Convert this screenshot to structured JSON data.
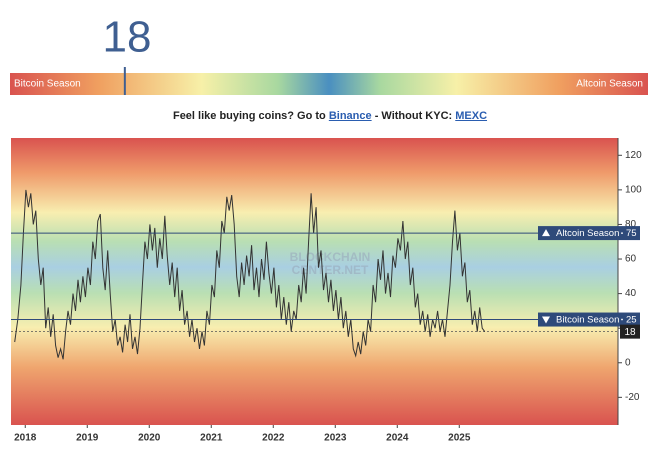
{
  "header": {
    "current_value": 18,
    "scale": [
      0,
      100
    ],
    "min_label": "Bitcoin Season",
    "max_label": "Altcoin Season",
    "promo": {
      "lead": "Feel like buying coins? Go to",
      "link1": "Binance",
      "middle": "- Without KYC:",
      "link2": "MEXC"
    }
  },
  "chart_data": {
    "type": "line",
    "color": "#333333",
    "watermark": [
      "BLOCKCHAIN",
      "CENTER.NET"
    ],
    "x": [
      2017.83,
      2017.88,
      2017.93,
      2017.97,
      2018.01,
      2018.05,
      2018.09,
      2018.13,
      2018.17,
      2018.21,
      2018.25,
      2018.29,
      2018.33,
      2018.37,
      2018.41,
      2018.45,
      2018.49,
      2018.53,
      2018.57,
      2018.61,
      2018.65,
      2018.69,
      2018.73,
      2018.77,
      2018.81,
      2018.85,
      2018.89,
      2018.93,
      2018.97,
      2019.01,
      2019.05,
      2019.09,
      2019.13,
      2019.17,
      2019.21,
      2019.25,
      2019.29,
      2019.33,
      2019.37,
      2019.41,
      2019.45,
      2019.49,
      2019.53,
      2019.57,
      2019.61,
      2019.65,
      2019.69,
      2019.73,
      2019.77,
      2019.81,
      2019.85,
      2019.89,
      2019.93,
      2019.97,
      2020.01,
      2020.05,
      2020.09,
      2020.13,
      2020.17,
      2020.21,
      2020.25,
      2020.29,
      2020.33,
      2020.37,
      2020.41,
      2020.45,
      2020.49,
      2020.53,
      2020.57,
      2020.61,
      2020.65,
      2020.69,
      2020.73,
      2020.77,
      2020.81,
      2020.85,
      2020.89,
      2020.93,
      2020.97,
      2021.01,
      2021.05,
      2021.09,
      2021.13,
      2021.17,
      2021.21,
      2021.25,
      2021.29,
      2021.33,
      2021.37,
      2021.41,
      2021.45,
      2021.49,
      2021.53,
      2021.57,
      2021.61,
      2021.65,
      2021.69,
      2021.73,
      2021.77,
      2021.81,
      2021.85,
      2021.89,
      2021.93,
      2021.97,
      2022.01,
      2022.05,
      2022.09,
      2022.13,
      2022.17,
      2022.21,
      2022.25,
      2022.29,
      2022.33,
      2022.37,
      2022.41,
      2022.45,
      2022.49,
      2022.53,
      2022.57,
      2022.61,
      2022.65,
      2022.69,
      2022.73,
      2022.77,
      2022.81,
      2022.85,
      2022.89,
      2022.93,
      2022.97,
      2023.01,
      2023.05,
      2023.09,
      2023.13,
      2023.17,
      2023.21,
      2023.25,
      2023.29,
      2023.33,
      2023.37,
      2023.41,
      2023.45,
      2023.49,
      2023.53,
      2023.57,
      2023.61,
      2023.65,
      2023.69,
      2023.73,
      2023.77,
      2023.81,
      2023.85,
      2023.89,
      2023.93,
      2023.97,
      2024.01,
      2024.05,
      2024.09,
      2024.13,
      2024.17,
      2024.21,
      2024.25,
      2024.29,
      2024.33,
      2024.37,
      2024.41,
      2024.45,
      2024.49,
      2024.53,
      2024.57,
      2024.61,
      2024.65,
      2024.69,
      2024.73,
      2024.77,
      2024.81,
      2024.85,
      2024.89,
      2024.93,
      2024.97,
      2025.01,
      2025.05,
      2025.09,
      2025.13,
      2025.17,
      2025.21,
      2025.25,
      2025.29,
      2025.33,
      2025.37,
      2025.41
    ],
    "values": [
      12,
      25,
      45,
      75,
      100,
      90,
      98,
      80,
      88,
      60,
      45,
      55,
      20,
      32,
      15,
      28,
      10,
      3,
      8,
      2,
      18,
      30,
      22,
      40,
      30,
      48,
      35,
      50,
      38,
      55,
      45,
      70,
      60,
      82,
      86,
      55,
      42,
      65,
      40,
      18,
      25,
      10,
      15,
      6,
      22,
      12,
      28,
      8,
      15,
      5,
      20,
      45,
      70,
      60,
      80,
      65,
      78,
      55,
      72,
      60,
      85,
      62,
      45,
      58,
      38,
      55,
      30,
      42,
      22,
      30,
      15,
      25,
      12,
      20,
      8,
      18,
      10,
      30,
      22,
      45,
      38,
      65,
      55,
      82,
      75,
      96,
      88,
      97,
      80,
      50,
      38,
      58,
      45,
      62,
      50,
      68,
      42,
      55,
      38,
      60,
      48,
      70,
      52,
      40,
      55,
      32,
      45,
      25,
      38,
      22,
      35,
      18,
      30,
      25,
      45,
      35,
      55,
      40,
      70,
      98,
      75,
      90,
      55,
      65,
      42,
      52,
      35,
      48,
      30,
      42,
      25,
      38,
      20,
      30,
      15,
      25,
      8,
      4,
      12,
      5,
      18,
      10,
      25,
      18,
      45,
      35,
      60,
      48,
      65,
      40,
      52,
      38,
      62,
      55,
      72,
      65,
      82,
      60,
      70,
      45,
      55,
      32,
      40,
      22,
      30,
      18,
      28,
      15,
      25,
      20,
      30,
      18,
      25,
      15,
      30,
      45,
      70,
      88,
      65,
      75,
      50,
      58,
      35,
      42,
      22,
      30,
      18,
      32,
      20,
      18
    ],
    "xlim": [
      2017.77,
      2027.56
    ],
    "xticks": [
      2018,
      2019,
      2020,
      2021,
      2022,
      2023,
      2024,
      2025
    ],
    "ylim": [
      -36,
      130
    ],
    "yticks": [
      120,
      100,
      80,
      60,
      40,
      20,
      0,
      -20
    ],
    "reference_lines": [
      {
        "label": "Altcoin Season",
        "value": 75,
        "color": "#2e4a7a"
      },
      {
        "label": "Bitcoin Season",
        "value": 25,
        "color": "#2e4a7a"
      }
    ]
  }
}
